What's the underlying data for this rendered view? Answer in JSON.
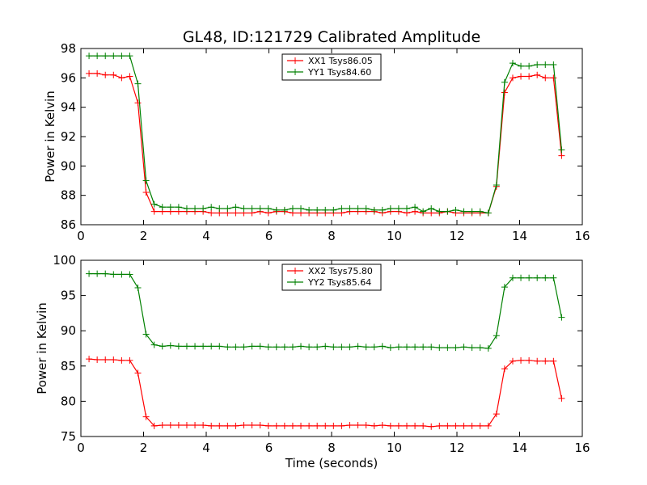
{
  "figure": {
    "title": "GL48, ID:121729 Calibrated Amplitude"
  },
  "chart_data": [
    {
      "type": "line",
      "title": "GL48, ID:121729 Calibrated Amplitude",
      "xlabel": "",
      "ylabel": "Power in Kelvin",
      "xlim": [
        0,
        16
      ],
      "ylim": [
        86,
        98
      ],
      "xticks": [
        0,
        2,
        4,
        6,
        8,
        10,
        12,
        14,
        16
      ],
      "yticks": [
        86,
        88,
        90,
        92,
        94,
        96,
        98
      ],
      "grid": false,
      "legend_position": "top-center",
      "x": [
        0.26,
        0.52,
        0.78,
        1.04,
        1.3,
        1.56,
        1.82,
        2.08,
        2.34,
        2.6,
        2.86,
        3.12,
        3.38,
        3.64,
        3.9,
        4.16,
        4.42,
        4.68,
        4.94,
        5.2,
        5.46,
        5.72,
        5.98,
        6.24,
        6.5,
        6.76,
        7.02,
        7.28,
        7.54,
        7.8,
        8.06,
        8.32,
        8.58,
        8.84,
        9.1,
        9.36,
        9.62,
        9.88,
        10.14,
        10.4,
        10.66,
        10.92,
        11.18,
        11.44,
        11.7,
        11.96,
        12.22,
        12.48,
        12.74,
        13.0,
        13.26,
        13.52,
        13.78,
        14.04,
        14.3,
        14.56,
        14.82,
        15.08,
        15.34
      ],
      "series": [
        {
          "name": "XX1 Tsys86.05",
          "color": "#ff0000",
          "values": [
            96.3,
            96.3,
            96.2,
            96.2,
            96.0,
            96.1,
            94.3,
            88.2,
            86.9,
            86.9,
            86.9,
            86.9,
            86.9,
            86.9,
            86.9,
            86.8,
            86.8,
            86.8,
            86.8,
            86.8,
            86.8,
            86.9,
            86.8,
            86.9,
            86.9,
            86.8,
            86.8,
            86.8,
            86.8,
            86.8,
            86.8,
            86.8,
            86.9,
            86.9,
            86.9,
            86.9,
            86.8,
            86.9,
            86.9,
            86.8,
            86.9,
            86.8,
            86.8,
            86.8,
            86.9,
            86.8,
            86.8,
            86.8,
            86.8,
            86.8,
            88.6,
            95.0,
            96.0,
            96.1,
            96.1,
            96.2,
            96.0,
            96.0,
            90.7
          ]
        },
        {
          "name": "YY1 Tsys84.60",
          "color": "#008000",
          "values": [
            97.5,
            97.5,
            97.5,
            97.5,
            97.5,
            97.5,
            95.6,
            89.0,
            87.4,
            87.2,
            87.2,
            87.2,
            87.1,
            87.1,
            87.1,
            87.2,
            87.1,
            87.1,
            87.2,
            87.1,
            87.1,
            87.1,
            87.1,
            87.0,
            87.0,
            87.1,
            87.1,
            87.0,
            87.0,
            87.0,
            87.0,
            87.1,
            87.1,
            87.1,
            87.1,
            87.0,
            87.0,
            87.1,
            87.1,
            87.1,
            87.2,
            86.9,
            87.1,
            86.9,
            86.9,
            87.0,
            86.9,
            86.9,
            86.9,
            86.8,
            88.7,
            95.7,
            97.0,
            96.8,
            96.8,
            96.9,
            96.9,
            96.9,
            91.1
          ]
        }
      ]
    },
    {
      "type": "line",
      "title": "",
      "xlabel": "Time (seconds)",
      "ylabel": "Power in Kelvin",
      "xlim": [
        0,
        16
      ],
      "ylim": [
        75,
        100
      ],
      "xticks": [
        0,
        2,
        4,
        6,
        8,
        10,
        12,
        14,
        16
      ],
      "yticks": [
        75,
        80,
        85,
        90,
        95,
        100
      ],
      "grid": false,
      "legend_position": "top-center",
      "x": [
        0.26,
        0.52,
        0.78,
        1.04,
        1.3,
        1.56,
        1.82,
        2.08,
        2.34,
        2.6,
        2.86,
        3.12,
        3.38,
        3.64,
        3.9,
        4.16,
        4.42,
        4.68,
        4.94,
        5.2,
        5.46,
        5.72,
        5.98,
        6.24,
        6.5,
        6.76,
        7.02,
        7.28,
        7.54,
        7.8,
        8.06,
        8.32,
        8.58,
        8.84,
        9.1,
        9.36,
        9.62,
        9.88,
        10.14,
        10.4,
        10.66,
        10.92,
        11.18,
        11.44,
        11.7,
        11.96,
        12.22,
        12.48,
        12.74,
        13.0,
        13.26,
        13.52,
        13.78,
        14.04,
        14.3,
        14.56,
        14.82,
        15.08,
        15.34
      ],
      "series": [
        {
          "name": "XX2 Tsys75.80",
          "color": "#ff0000",
          "values": [
            86.0,
            85.9,
            85.9,
            85.9,
            85.8,
            85.8,
            84.0,
            77.8,
            76.5,
            76.6,
            76.6,
            76.6,
            76.6,
            76.6,
            76.6,
            76.5,
            76.5,
            76.5,
            76.5,
            76.6,
            76.6,
            76.6,
            76.5,
            76.5,
            76.5,
            76.5,
            76.5,
            76.5,
            76.5,
            76.5,
            76.5,
            76.5,
            76.6,
            76.6,
            76.6,
            76.5,
            76.6,
            76.5,
            76.5,
            76.5,
            76.5,
            76.5,
            76.4,
            76.5,
            76.5,
            76.5,
            76.5,
            76.5,
            76.5,
            76.5,
            78.2,
            84.6,
            85.7,
            85.8,
            85.8,
            85.7,
            85.7,
            85.7,
            80.4
          ]
        },
        {
          "name": "YY2 Tsys85.64",
          "color": "#008000",
          "values": [
            98.1,
            98.1,
            98.1,
            98.0,
            98.0,
            98.0,
            96.1,
            89.5,
            88.0,
            87.8,
            87.9,
            87.8,
            87.8,
            87.8,
            87.8,
            87.8,
            87.8,
            87.7,
            87.7,
            87.7,
            87.8,
            87.8,
            87.7,
            87.7,
            87.7,
            87.7,
            87.8,
            87.7,
            87.7,
            87.8,
            87.7,
            87.7,
            87.7,
            87.8,
            87.7,
            87.7,
            87.8,
            87.6,
            87.7,
            87.7,
            87.7,
            87.7,
            87.7,
            87.6,
            87.6,
            87.6,
            87.7,
            87.6,
            87.6,
            87.5,
            89.3,
            96.2,
            97.5,
            97.5,
            97.5,
            97.5,
            97.5,
            97.5,
            91.9
          ]
        }
      ]
    }
  ]
}
